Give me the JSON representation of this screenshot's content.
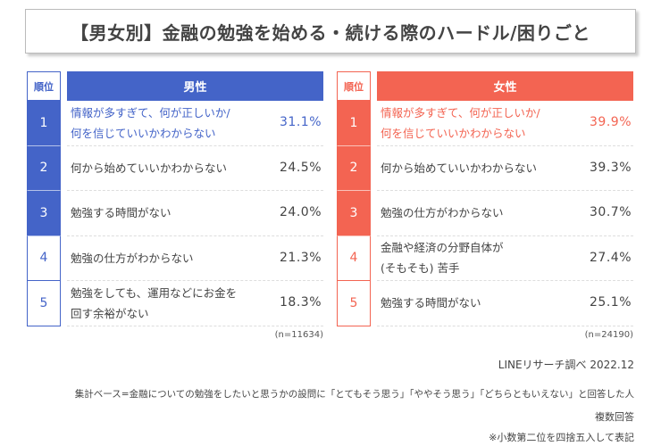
{
  "title": "【男女別】金融の勉強を始める・続ける際のハードル/困りごと",
  "colors": {
    "male": "#4464c8",
    "female": "#f36452"
  },
  "rank_label": "順位",
  "male": {
    "label": "男性",
    "n": "(n=11634)",
    "items": [
      {
        "rank": "1",
        "l1": "情報が多すぎて、何が正しいか/",
        "l2": "何を信じていいかわからない",
        "pct": "31.1%"
      },
      {
        "rank": "2",
        "l1": "何から始めていいかわからない",
        "l2": "",
        "pct": "24.5%"
      },
      {
        "rank": "3",
        "l1": "勉強する時間がない",
        "l2": "",
        "pct": "24.0%"
      },
      {
        "rank": "4",
        "l1": "勉強の仕方がわからない",
        "l2": "",
        "pct": "21.3%"
      },
      {
        "rank": "5",
        "l1": "勉強をしても、運用などにお金を",
        "l2": "回す余裕がない",
        "pct": "18.3%"
      }
    ]
  },
  "female": {
    "label": "女性",
    "n": "(n=24190)",
    "items": [
      {
        "rank": "1",
        "l1": "情報が多すぎて、何が正しいか/",
        "l2": "何を信じていいかわからない",
        "pct": "39.9%"
      },
      {
        "rank": "2",
        "l1": "何から始めていいかわからない",
        "l2": "",
        "pct": "39.3%"
      },
      {
        "rank": "3",
        "l1": "勉強の仕方がわからない",
        "l2": "",
        "pct": "30.7%"
      },
      {
        "rank": "4",
        "l1": "金融や経済の分野自体が",
        "l2": "(そもそも) 苦手",
        "pct": "27.4%"
      },
      {
        "rank": "5",
        "l1": "勉強する時間がない",
        "l2": "",
        "pct": "25.1%"
      }
    ]
  },
  "source": "LINEリサーチ調べ 2022.12",
  "notes": [
    "集計ベース=金融についての勉強をしたいと思うかの設問に「とてもそう思う」「ややそう思う」「どちらともいえない」と回答した人",
    "複数回答",
    "※小数第二位を四捨五入して表記"
  ]
}
